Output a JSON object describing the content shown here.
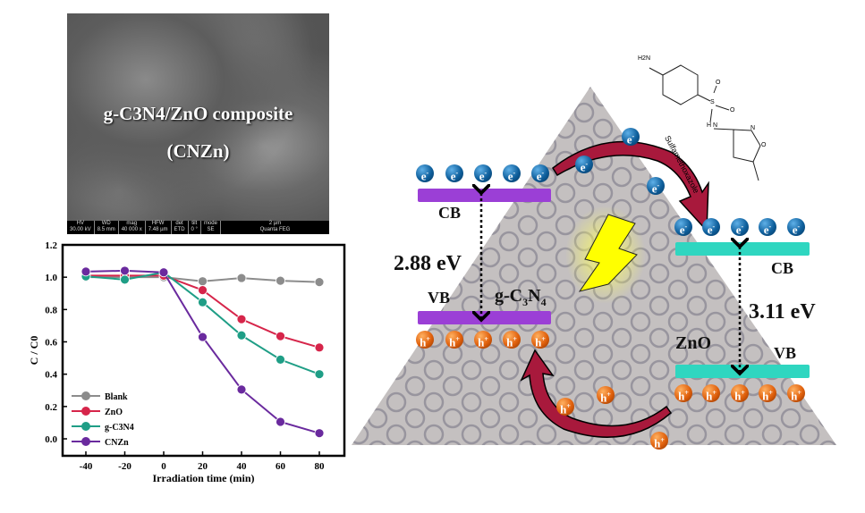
{
  "sem": {
    "title_line1": "g-C3N4/ZnO composite",
    "title_line2": "(CNZn)",
    "info_bar": [
      {
        "head": "HV",
        "val": "30.00 kV"
      },
      {
        "head": "WD",
        "val": "8.5 mm"
      },
      {
        "head": "mag",
        "val": "40 000 x"
      },
      {
        "head": "HFW",
        "val": "7.48 µm"
      },
      {
        "head": "det",
        "val": "ETD"
      },
      {
        "head": "tilt",
        "val": "0 °"
      },
      {
        "head": "mode",
        "val": "SE"
      }
    ],
    "scale_bar": "2 µm",
    "instrument": "Quanta FEG"
  },
  "chart_data": {
    "type": "line",
    "xlabel": "Irradiation time (min)",
    "ylabel": "C / C0",
    "x": [
      -40,
      -20,
      0,
      20,
      40,
      60,
      80
    ],
    "xlim": [
      -50,
      90
    ],
    "ylim": [
      -0.1,
      1.2
    ],
    "xticks": [
      "-40",
      "-20",
      "0",
      "20",
      "40",
      "60",
      "80"
    ],
    "yticks": [
      "0.0",
      "0.2",
      "0.4",
      "0.6",
      "0.8",
      "1.0",
      "1.2"
    ],
    "grid": false,
    "legend_position": "bottom-left",
    "series": [
      {
        "name": "Blank",
        "color": "#8c8c8c",
        "values": [
          1.0,
          1.0,
          1.0,
          0.975,
          0.995,
          0.978,
          0.97
        ]
      },
      {
        "name": "ZnO",
        "color": "#d6254a",
        "values": [
          1.01,
          1.01,
          1.01,
          0.92,
          0.74,
          0.635,
          0.565
        ]
      },
      {
        "name": "g-C3N4",
        "color": "#1f9e86",
        "values": [
          1.005,
          0.985,
          1.03,
          0.845,
          0.64,
          0.49,
          0.4
        ]
      },
      {
        "name": "CNZn",
        "color": "#6a2a9e",
        "values": [
          1.035,
          1.04,
          1.03,
          0.63,
          0.305,
          0.105,
          0.035
        ]
      }
    ]
  },
  "diagram": {
    "gcn": {
      "cb": "CB",
      "vb": "VB",
      "name": "g-C3N4",
      "gap": "2.88 eV",
      "color": "#9b3fd6"
    },
    "zno": {
      "cb": "CB",
      "vb": "VB",
      "name": "ZnO",
      "gap": "3.11 eV",
      "color": "#2fd6c0"
    },
    "electron": "e-",
    "hole": "h+",
    "molecule_name": "Sulfamethoxazole",
    "molecule_atoms": {
      "amine": "H2N",
      "sulfur": "S",
      "oxygen": "O",
      "nh": "H N",
      "ring_n": "N",
      "ring_o": "O"
    },
    "arrow_color": "#a8193c",
    "lightning_color": "#ffff00"
  }
}
